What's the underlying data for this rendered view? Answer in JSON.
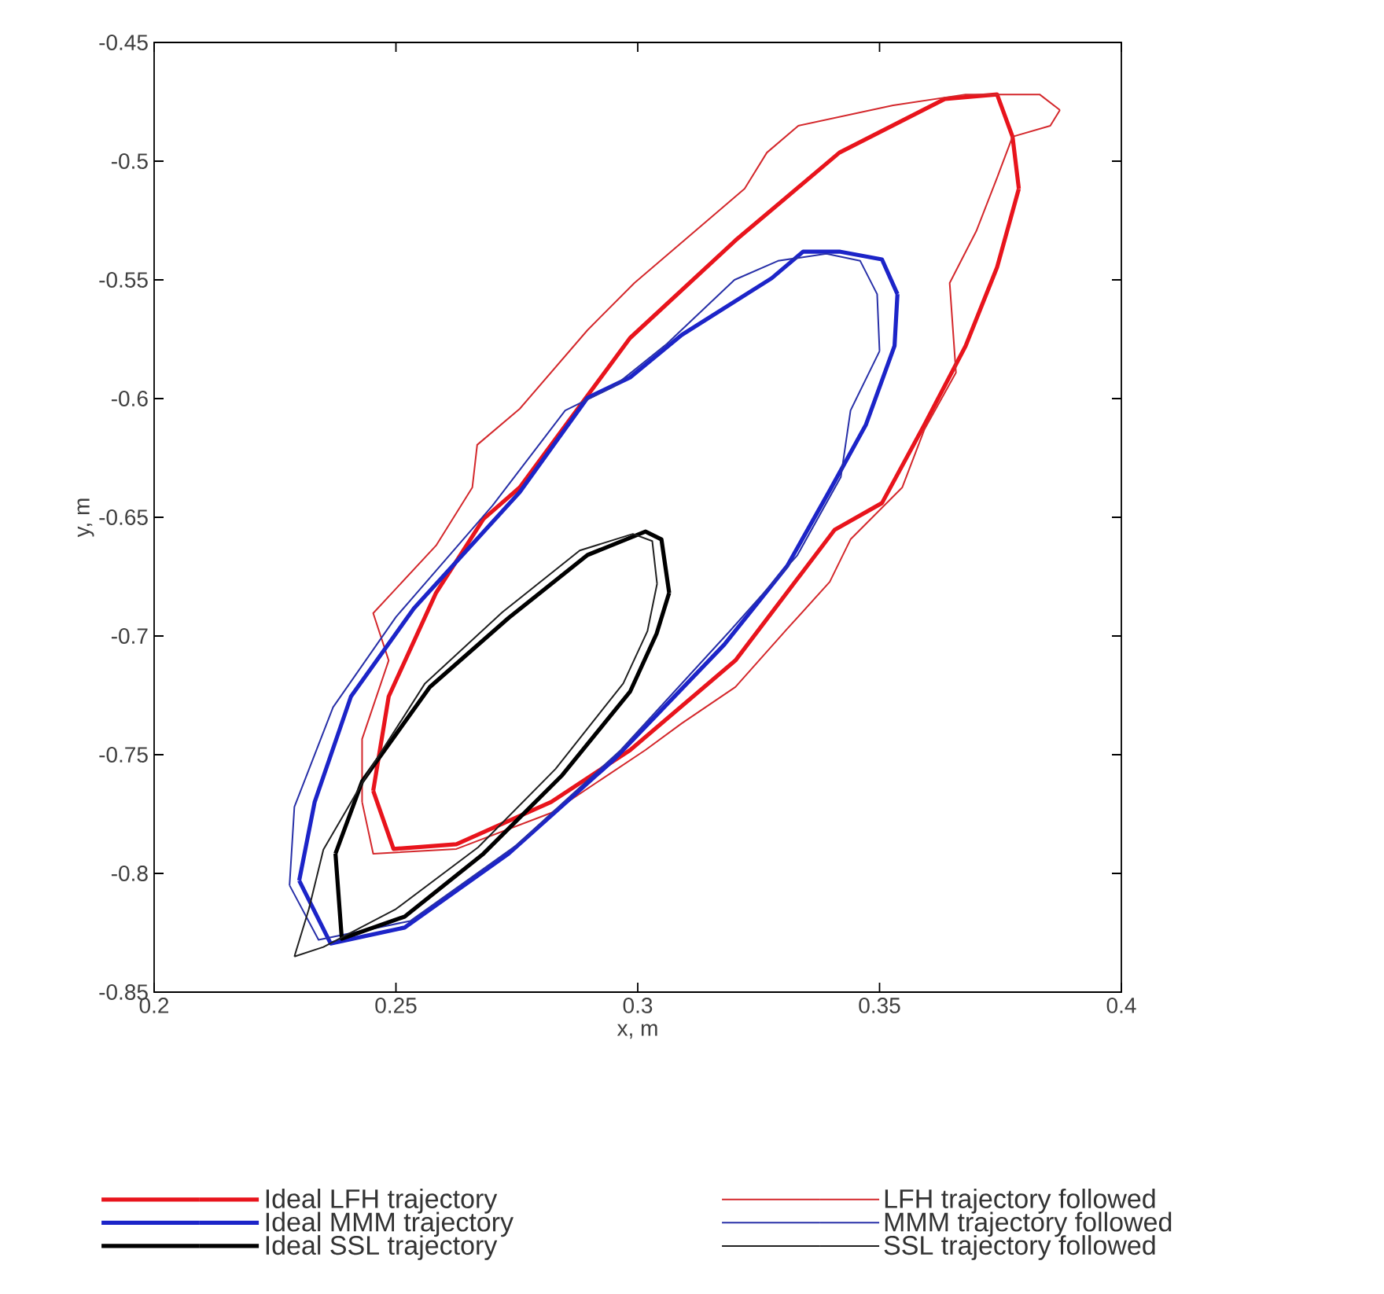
{
  "chart_data": {
    "type": "line",
    "xlabel": "x, m",
    "ylabel": "y, m",
    "xlim": [
      0.2,
      0.4
    ],
    "ylim": [
      -0.85,
      -0.45
    ],
    "xticks": [
      0.2,
      0.25,
      0.3,
      0.35,
      0.4
    ],
    "yticks": [
      -0.85,
      -0.8,
      -0.75,
      -0.7,
      -0.65,
      -0.6,
      -0.55,
      -0.5,
      -0.45
    ],
    "legend": "bottom",
    "line_style": "solid",
    "series": [
      {
        "name": "Ideal LFH trajectory",
        "color": "#e8141c",
        "x": [
          0.2453,
          0.2495,
          0.2625,
          0.2821,
          0.2984,
          0.3202,
          0.3407,
          0.3505,
          0.3593,
          0.3678,
          0.3743,
          0.3788,
          null,
          0.2453,
          0.2485,
          0.2583,
          0.2681,
          0.2756,
          0.2984,
          0.3202,
          0.3417,
          0.3635,
          0.3743,
          0.3775,
          0.3788
        ],
        "values": [
          -0.7652,
          -0.7897,
          -0.7877,
          -0.7699,
          -0.7481,
          -0.7103,
          -0.6553,
          -0.644,
          -0.6109,
          -0.5778,
          -0.5447,
          -0.5116,
          null,
          -0.7652,
          -0.7255,
          -0.6818,
          -0.6507,
          -0.6374,
          -0.5745,
          -0.5334,
          -0.4964,
          -0.4738,
          -0.4719,
          -0.4897,
          -0.5116
        ]
      },
      {
        "name": "LFH trajectory followed",
        "color": "#d4282c",
        "x": [
          0.243,
          0.2453,
          0.2625,
          0.2821,
          0.3016,
          0.3091,
          0.3202,
          0.3309,
          0.3397,
          0.344,
          0.3547,
          0.3593,
          0.3658,
          0.3645,
          0.37,
          0.3743,
          0.3775,
          0.3853,
          0.3873,
          null,
          0.243,
          0.243,
          0.2485,
          0.2453,
          0.2583,
          0.2658,
          0.2668,
          0.2756,
          0.2896,
          0.2993,
          0.3221,
          0.3267,
          0.3332,
          0.3528,
          0.3678,
          0.3831,
          0.3873
        ],
        "values": [
          -0.7699,
          -0.7917,
          -0.7897,
          -0.7745,
          -0.748,
          -0.7368,
          -0.7215,
          -0.697,
          -0.6772,
          -0.6593,
          -0.6374,
          -0.6129,
          -0.5891,
          -0.5513,
          -0.5295,
          -0.507,
          -0.4897,
          -0.4851,
          -0.4785,
          null,
          -0.7699,
          -0.7434,
          -0.7103,
          -0.6904,
          -0.6619,
          -0.6374,
          -0.6195,
          -0.6043,
          -0.5712,
          -0.5513,
          -0.5116,
          -0.4964,
          -0.4851,
          -0.4765,
          -0.4719,
          -0.4719,
          -0.4785
        ]
      },
      {
        "name": "Ideal MMM trajectory",
        "color": "#1c24c8",
        "x": [
          0.23,
          0.2365,
          0.2518,
          0.2733,
          0.2951,
          0.3179,
          0.3309,
          0.3397,
          0.3472,
          0.3531,
          0.3537,
          null,
          0.23,
          0.2332,
          0.2407,
          0.2537,
          0.2756,
          0.2896,
          0.2984,
          0.3091,
          0.3277,
          0.3342,
          0.3417,
          0.3505,
          0.3537
        ],
        "values": [
          -0.803,
          -0.8295,
          -0.8228,
          -0.7917,
          -0.752,
          -0.7036,
          -0.6705,
          -0.6387,
          -0.6109,
          -0.5778,
          -0.556,
          null,
          -0.803,
          -0.7699,
          -0.7255,
          -0.6884,
          -0.6394,
          -0.5997,
          -0.5911,
          -0.5732,
          -0.5493,
          -0.5381,
          -0.5381,
          -0.5414,
          -0.556
        ]
      },
      {
        "name": "MMM trajectory followed",
        "color": "#2830a8",
        "x": [
          0.228,
          0.234,
          0.253,
          0.275,
          0.2965,
          0.319,
          0.333,
          0.342,
          0.344,
          0.35,
          null,
          0.228,
          0.229,
          0.237,
          0.25,
          0.27,
          0.285,
          0.295,
          0.306,
          0.32,
          0.329,
          0.339,
          0.346,
          0.3495,
          0.35
        ],
        "values": [
          -0.805,
          -0.828,
          -0.82,
          -0.788,
          -0.748,
          -0.698,
          -0.666,
          -0.633,
          -0.605,
          -0.58,
          null,
          -0.805,
          -0.772,
          -0.73,
          -0.692,
          -0.645,
          -0.605,
          -0.595,
          -0.577,
          -0.55,
          -0.542,
          -0.539,
          -0.542,
          -0.556,
          -0.58
        ]
      },
      {
        "name": "Ideal SSL trajectory",
        "color": "#000000",
        "x": [
          0.2375,
          0.2388,
          0.2518,
          0.2681,
          0.2844,
          0.2984,
          0.3039,
          0.3065,
          null,
          0.2375,
          0.243,
          0.257,
          0.2733,
          0.2896,
          0.3016,
          0.3049,
          0.3065
        ],
        "values": [
          -0.7917,
          -0.8275,
          -0.8182,
          -0.7917,
          -0.7586,
          -0.7235,
          -0.699,
          -0.6818,
          null,
          -0.7917,
          -0.7613,
          -0.7215,
          -0.6924,
          -0.6659,
          -0.656,
          -0.6593,
          -0.6818
        ]
      },
      {
        "name": "SSL trajectory followed",
        "color": "#202020",
        "x": [
          0.229,
          0.235,
          0.25,
          0.267,
          0.283,
          0.297,
          0.302,
          0.304,
          null,
          0.229,
          0.232,
          0.235,
          0.245,
          0.256,
          0.272,
          0.288,
          0.299,
          0.303,
          0.304
        ],
        "values": [
          -0.835,
          -0.831,
          -0.815,
          -0.789,
          -0.756,
          -0.72,
          -0.698,
          -0.678,
          null,
          -0.835,
          -0.815,
          -0.79,
          -0.755,
          -0.72,
          -0.69,
          -0.664,
          -0.657,
          -0.66,
          -0.678
        ]
      }
    ]
  }
}
